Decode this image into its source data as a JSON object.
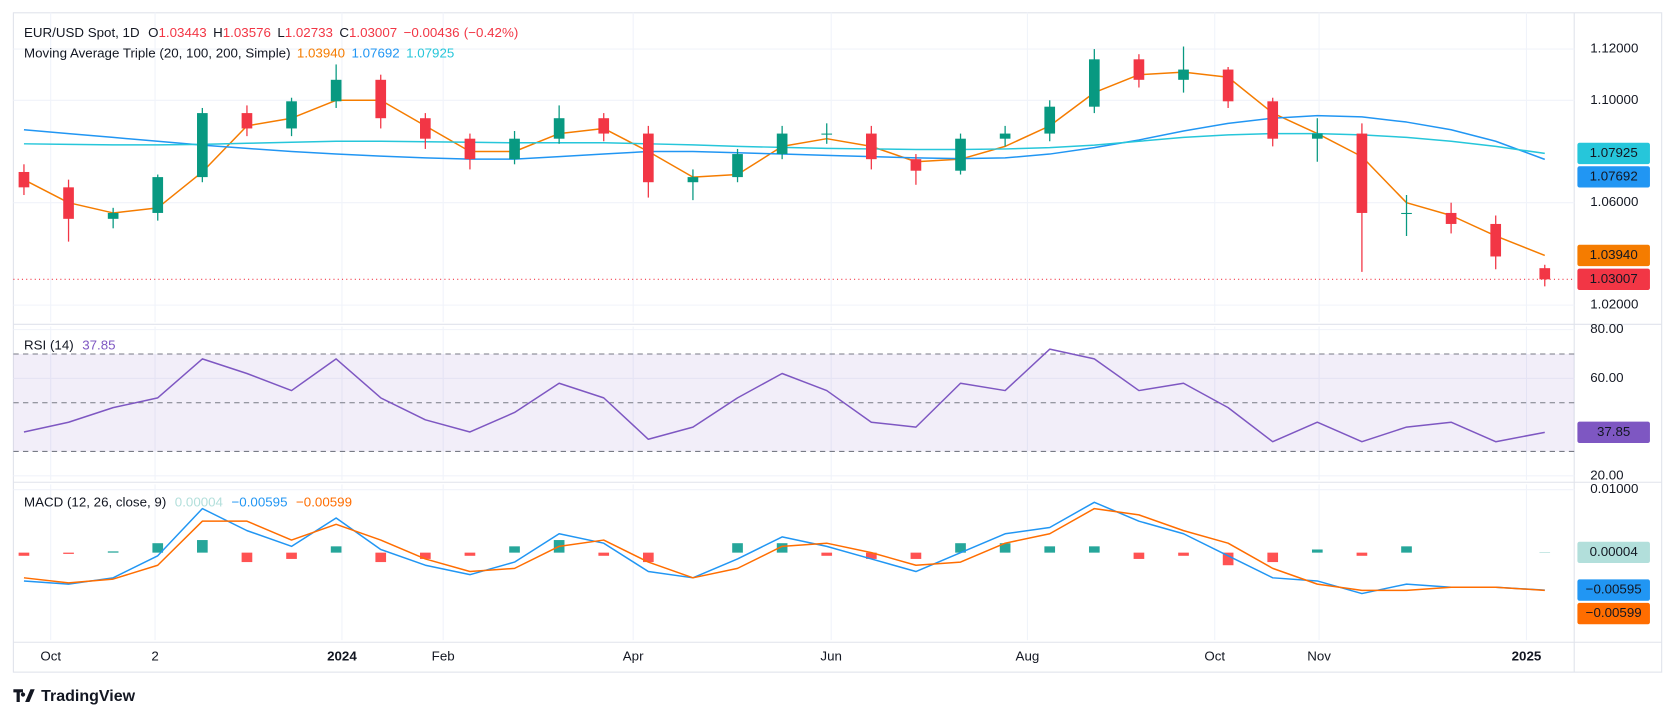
{
  "chart_data": [
    {
      "type": "candlestick",
      "title": "EUR/USD Spot, 1D",
      "legend_keys": [
        "O",
        "H",
        "L",
        "C"
      ],
      "change": {
        "value": -0.00436,
        "label": "−0.00436"
      },
      "change_pct": {
        "value": -0.42,
        "label": "(−0.42%)"
      },
      "indicator": "Moving Average Triple (20, 100, 200, Simple)",
      "color_up": "#089981",
      "color_down": "#f23645",
      "x": [
        -6,
        4,
        14,
        24,
        34,
        44,
        54,
        64,
        74,
        84,
        94,
        104,
        114,
        124,
        134,
        144,
        154,
        164,
        174,
        184,
        194,
        204,
        214,
        224,
        234,
        244,
        254,
        264,
        274,
        284,
        294,
        304,
        314,
        324,
        335
      ],
      "open": [
        1.072,
        1.066,
        1.0537,
        1.056,
        1.07,
        1.095,
        1.089,
        1.0996,
        1.108,
        1.093,
        1.085,
        1.077,
        1.085,
        1.093,
        1.087,
        1.068,
        1.07,
        1.079,
        1.087,
        1.087,
        1.077,
        1.0725,
        1.085,
        1.087,
        1.0975,
        1.116,
        1.108,
        1.112,
        1.0996,
        1.085,
        1.087,
        1.056,
        1.056,
        1.0517,
        1.03443
      ],
      "high": [
        1.075,
        1.069,
        1.058,
        1.071,
        1.097,
        1.098,
        1.101,
        1.114,
        1.11,
        1.095,
        1.087,
        1.088,
        1.098,
        1.095,
        1.09,
        1.073,
        1.081,
        1.09,
        1.091,
        1.09,
        1.079,
        1.087,
        1.09,
        1.1,
        1.12,
        1.118,
        1.121,
        1.113,
        1.101,
        1.093,
        1.091,
        1.063,
        1.06,
        1.055,
        1.03576
      ],
      "low": [
        1.063,
        1.0448,
        1.05,
        1.053,
        1.068,
        1.086,
        1.086,
        1.097,
        1.089,
        1.081,
        1.073,
        1.075,
        1.083,
        1.084,
        1.062,
        1.061,
        1.068,
        1.077,
        1.083,
        1.073,
        1.067,
        1.071,
        1.082,
        1.084,
        1.095,
        1.105,
        1.103,
        1.097,
        1.082,
        1.076,
        1.033,
        1.047,
        1.048,
        1.034,
        1.02733
      ],
      "close": [
        1.066,
        1.0537,
        1.056,
        1.07,
        1.095,
        1.089,
        1.0996,
        1.108,
        1.093,
        1.085,
        1.077,
        1.085,
        1.093,
        1.087,
        1.068,
        1.07,
        1.079,
        1.087,
        1.087,
        1.077,
        1.0725,
        1.085,
        1.087,
        1.0975,
        1.116,
        1.108,
        1.112,
        1.0996,
        1.085,
        1.087,
        1.056,
        1.056,
        1.0517,
        1.039,
        1.03007
      ],
      "overlays": [
        {
          "color": "#f57c00",
          "last_label": "1.03940",
          "values": [
            1.069,
            1.06,
            1.056,
            1.058,
            1.072,
            1.09,
            1.093,
            1.1,
            1.1,
            1.09,
            1.08,
            1.08,
            1.087,
            1.089,
            1.08,
            1.07,
            1.071,
            1.082,
            1.085,
            1.082,
            1.076,
            1.077,
            1.082,
            1.09,
            1.103,
            1.11,
            1.111,
            1.109,
            1.095,
            1.087,
            1.078,
            1.06,
            1.055,
            1.047,
            1.0394
          ]
        },
        {
          "color": "#2196f3",
          "last_label": "1.07692",
          "values": [
            1.0885,
            1.087,
            1.0855,
            1.084,
            1.0825,
            1.0812,
            1.08,
            1.079,
            1.0782,
            1.0775,
            1.077,
            1.077,
            1.078,
            1.079,
            1.08,
            1.08,
            1.0795,
            1.079,
            1.0785,
            1.078,
            1.0775,
            1.0772,
            1.0775,
            1.079,
            1.0815,
            1.0845,
            1.088,
            1.091,
            1.093,
            1.094,
            1.0935,
            1.0915,
            1.0885,
            1.084,
            1.07692
          ]
        },
        {
          "color": "#26c6da",
          "last_label": "1.07925",
          "values": [
            1.083,
            1.0828,
            1.0826,
            1.0826,
            1.0828,
            1.0832,
            1.0836,
            1.084,
            1.084,
            1.0838,
            1.0836,
            1.0834,
            1.0834,
            1.0834,
            1.083,
            1.0826,
            1.082,
            1.0816,
            1.0812,
            1.081,
            1.0808,
            1.0808,
            1.081,
            1.0815,
            1.0825,
            1.084,
            1.0855,
            1.0865,
            1.087,
            1.087,
            1.0865,
            1.0855,
            1.084,
            1.082,
            1.07925
          ]
        }
      ],
      "price_line": true,
      "xlim": [
        -8.37,
        341.6
      ],
      "ylim": [
        1.01333,
        1.13417
      ],
      "yticks": [
        {
          "value": 1.02,
          "label": "1.02000"
        },
        {
          "value": 1.06,
          "label": "1.06000"
        },
        {
          "value": 1.1,
          "label": "1.10000"
        },
        {
          "value": 1.12,
          "label": "1.12000"
        }
      ],
      "grid": true
    },
    {
      "type": "line",
      "title": "RSI (14)",
      "x": [
        -6,
        4,
        14,
        24,
        34,
        44,
        54,
        64,
        74,
        84,
        94,
        104,
        114,
        124,
        134,
        144,
        154,
        164,
        174,
        184,
        194,
        204,
        214,
        224,
        234,
        244,
        254,
        264,
        274,
        284,
        294,
        304,
        314,
        324,
        335
      ],
      "series": [
        {
          "color": "#7e57c2",
          "values": [
            38,
            42,
            48,
            52,
            68,
            62,
            55,
            68,
            52,
            43,
            38,
            46,
            58,
            52,
            35,
            40,
            52,
            62,
            55,
            42,
            40,
            58,
            55,
            72,
            68,
            55,
            58,
            48,
            34,
            42,
            34,
            40,
            42,
            34,
            37.85
          ]
        }
      ],
      "levels": [
        70,
        50,
        30
      ],
      "band_color": "rgba(126,87,194,0.1)",
      "xlim": [
        -8.37,
        341.6
      ],
      "ylim": [
        18.25,
        81.31
      ],
      "yticks": [
        {
          "value": 20,
          "label": "20.00"
        },
        {
          "value": 60,
          "label": "60.00"
        },
        {
          "value": 80,
          "label": "80.00"
        }
      ],
      "grid": true
    },
    {
      "type": "macd",
      "title": "MACD (12, 26, close, 9)",
      "x": [
        -6,
        4,
        14,
        24,
        34,
        44,
        54,
        64,
        74,
        84,
        94,
        104,
        114,
        124,
        134,
        144,
        154,
        164,
        174,
        184,
        194,
        204,
        214,
        224,
        234,
        244,
        254,
        264,
        274,
        284,
        294,
        304,
        314,
        324,
        335
      ],
      "series": [
        {
          "style": "histogram",
          "color": "#26a69a",
          "color_down": "#ff5252",
          "tag_color": "#b2dfdb",
          "last_label": "0.00004",
          "values": [
            -0.0005,
            -0.0002,
            0.0002,
            0.0015,
            0.002,
            -0.0015,
            -0.001,
            0.001,
            -0.0015,
            -0.001,
            -0.0005,
            0.001,
            0.002,
            -0.0005,
            -0.0015,
            0.0,
            0.0015,
            0.0015,
            -0.0005,
            -0.001,
            -0.001,
            0.0015,
            0.0015,
            0.001,
            0.001,
            -0.001,
            -0.0005,
            -0.002,
            -0.0015,
            0.0005,
            -0.0005,
            0.001,
            0.0,
            0.0,
            4e-05
          ]
        },
        {
          "style": "line",
          "color": "#2196f3",
          "last_label": "−0.00595",
          "values": [
            -0.0045,
            -0.005,
            -0.004,
            -0.0005,
            0.007,
            0.0035,
            0.001,
            0.0055,
            0.0005,
            -0.002,
            -0.0035,
            -0.0015,
            0.003,
            0.0015,
            -0.003,
            -0.004,
            -0.001,
            0.0025,
            0.001,
            -0.001,
            -0.003,
            0.0,
            0.003,
            0.004,
            0.008,
            0.005,
            0.003,
            -0.0005,
            -0.004,
            -0.0045,
            -0.0065,
            -0.005,
            -0.0055,
            -0.0055,
            -0.00595
          ]
        },
        {
          "style": "line",
          "color": "#ff6d00",
          "last_label": "−0.00599",
          "values": [
            -0.004,
            -0.0048,
            -0.0042,
            -0.002,
            0.005,
            0.005,
            0.002,
            0.0045,
            0.002,
            -0.001,
            -0.003,
            -0.0025,
            0.001,
            0.002,
            -0.0015,
            -0.004,
            -0.0025,
            0.001,
            0.0015,
            0.0,
            -0.002,
            -0.0015,
            0.0015,
            0.003,
            0.007,
            0.006,
            0.0035,
            0.0015,
            -0.0025,
            -0.005,
            -0.006,
            -0.006,
            -0.0055,
            -0.0055,
            -0.00599
          ]
        }
      ],
      "xlim": [
        -8.37,
        341.6
      ],
      "ylim": [
        -0.0139,
        0.01085
      ],
      "yticks": [
        {
          "value": 0.01,
          "label": "0.01000"
        }
      ],
      "xticks": [
        {
          "value": 0,
          "label": "Oct"
        },
        {
          "value": 23.4,
          "label": "2"
        },
        {
          "value": 65.3,
          "label": "2024",
          "bold": true
        },
        {
          "value": 88,
          "label": "Feb"
        },
        {
          "value": 130.6,
          "label": "Apr"
        },
        {
          "value": 175,
          "label": "Jun"
        },
        {
          "value": 219,
          "label": "Aug"
        },
        {
          "value": 261,
          "label": "Oct"
        },
        {
          "value": 284.4,
          "label": "Nov"
        },
        {
          "value": 330.9,
          "label": "2025",
          "bold": true
        }
      ],
      "grid": true
    }
  ],
  "footer": {
    "brand": "TradingView"
  }
}
